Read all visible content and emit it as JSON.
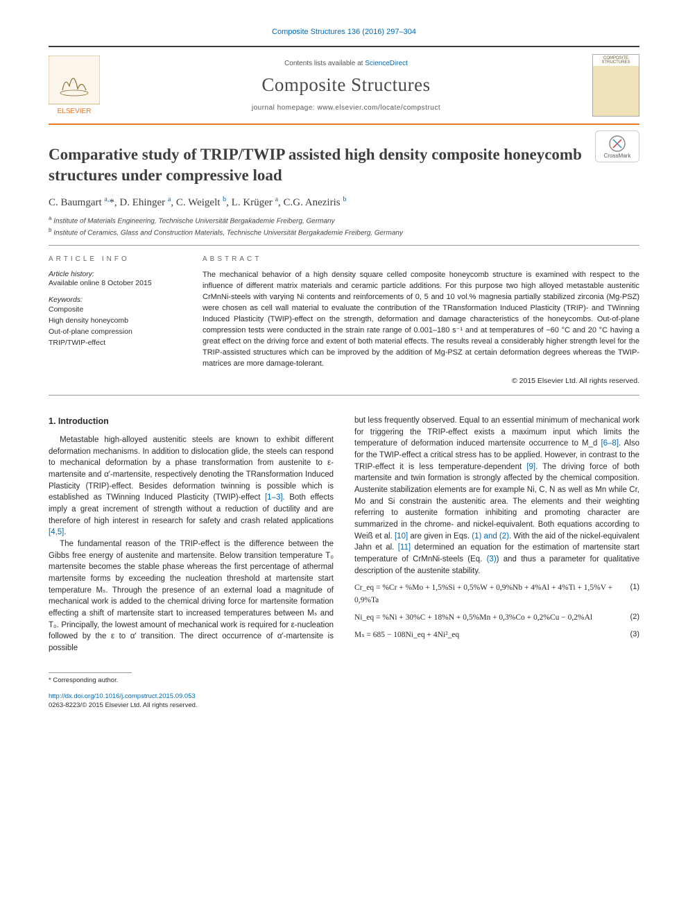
{
  "citation": "Composite Structures 136 (2016) 297–304",
  "masthead": {
    "contents_pre": "Contents lists available at ",
    "contents_link": "ScienceDirect",
    "journal_name": "Composite Structures",
    "homepage_pre": "journal homepage: ",
    "homepage_url": "www.elsevier.com/locate/compstruct",
    "publisher_logo_label": "ELSEVIER",
    "thumb_label": "COMPOSITE STRUCTURES"
  },
  "crossmark_label": "CrossMark",
  "article": {
    "title": "Comparative study of TRIP/TWIP assisted high density composite honeycomb structures under compressive load",
    "authors_html": "C. Baumgart <sup>a,</sup>*, D. Ehinger <sup>a</sup>, C. Weigelt <sup>b</sup>, L. Krüger <sup>a</sup>, C.G. Aneziris <sup>b</sup>",
    "affiliations": [
      {
        "marker": "a",
        "text": "Institute of Materials Engineering, Technische Universität Bergakademie Freiberg, Germany"
      },
      {
        "marker": "b",
        "text": "Institute of Ceramics, Glass and Construction Materials, Technische Universität Bergakademie Freiberg, Germany"
      }
    ]
  },
  "info": {
    "section_label": "article info",
    "history_label": "Article history:",
    "history_value": "Available online 8 October 2015",
    "keywords_label": "Keywords:",
    "keywords": [
      "Composite",
      "High density honeycomb",
      "Out-of-plane compression",
      "TRIP/TWIP-effect"
    ]
  },
  "abstract": {
    "section_label": "abstract",
    "text": "The mechanical behavior of a high density square celled composite honeycomb structure is examined with respect to the influence of different matrix materials and ceramic particle additions. For this purpose two high alloyed metastable austenitic CrMnNi-steels with varying Ni contents and reinforcements of 0, 5 and 10 vol.% magnesia partially stabilized zirconia (Mg-PSZ) were chosen as cell wall material to evaluate the contribution of the TRansformation Induced Plasticity (TRIP)- and TWinning Induced Plasticity (TWIP)-effect on the strength, deformation and damage characteristics of the honeycombs. Out-of-plane compression tests were conducted in the strain rate range of 0.001–180 s⁻¹ and at temperatures of −60 °C and 20 °C having a great effect on the driving force and extent of both material effects. The results reveal a considerably higher strength level for the TRIP-assisted structures which can be improved by the addition of Mg-PSZ at certain deformation degrees whereas the TWIP-matrices are more damage-tolerant.",
    "copyright": "© 2015 Elsevier Ltd. All rights reserved."
  },
  "body": {
    "heading": "1. Introduction",
    "p1": "Metastable high-alloyed austenitic steels are known to exhibit different deformation mechanisms. In addition to dislocation glide, the steels can respond to mechanical deformation by a phase transformation from austenite to ε-martensite and α′-martensite, respectively denoting the TRansformation Induced Plasticity (TRIP)-effect. Besides deformation twinning is possible which is established as TWinning Induced Plasticity (TWIP)-effect ",
    "p1_ref": "[1–3]",
    "p1b": ". Both effects imply a great increment of strength without a reduction of ductility and are therefore of high interest in research for safety and crash related applications ",
    "p1b_ref": "[4,5]",
    "p1c": ".",
    "p2a": "The fundamental reason of the TRIP-effect is the difference between the Gibbs free energy of austenite and martensite. Below transition temperature T₀ martensite becomes the stable phase whereas the first percentage of athermal martensite forms by exceeding the nucleation threshold at martensite start temperature Mₛ. Through the presence of an external load a magnitude of mechanical work is added to the chemical driving force for martensite formation effecting a shift of martensite start to increased temperatures between Mₛ and T₀. Principally, the lowest amount of mechanical work is required for ε-nucleation followed by the ε to α′ transition. The direct occurrence of α′-martensite is possible",
    "p2b": "but less frequently observed. Equal to an essential minimum of mechanical work for triggering the TRIP-effect exists a maximum input which limits the temperature of deformation induced martensite occurrence to M_d ",
    "p2b_ref": "[6–8]",
    "p2c": ". Also for the TWIP-effect a critical stress has to be applied. However, in contrast to the TRIP-effect it is less temperature-dependent ",
    "p2c_ref": "[9]",
    "p2d": ". The driving force of both martensite and twin formation is strongly affected by the chemical composition. Austenite stabilization elements are for example Ni, C, N as well as Mn while Cr, Mo and Si constrain the austenitic area. The elements and their weighting referring to austenite formation inhibiting and promoting character are summarized in the chrome- and nickel-equivalent. Both equations according to Weiß et al. ",
    "p2d_ref": "[10]",
    "p2e": " are given in Eqs. ",
    "p2e_ref": "(1) and (2)",
    "p2f": ". With the aid of the nickel-equivalent Jahn et al. ",
    "p2f_ref": "[11]",
    "p2g": " determined an equation for the estimation of martensite start temperature of CrMnNi-steels (Eq. ",
    "p2g_ref": "(3)",
    "p2h": ") and thus a parameter for qualitative description of the austenite stability."
  },
  "equations": {
    "eq1": "Cr_eq = %Cr + %Mo + 1,5%Si + 0,5%W + 0,9%Nb + 4%Al + 4%Ti + 1,5%V + 0,9%Ta",
    "eq1_num": "(1)",
    "eq2": "Ni_eq = %Ni + 30%C + 18%N + 0,5%Mn + 0,3%Co + 0,2%Cu − 0,2%Al",
    "eq2_num": "(2)",
    "eq3": "Mₛ = 685 − 108Ni_eq + 4Ni²_eq",
    "eq3_num": "(3)"
  },
  "footer": {
    "corresponding": "* Corresponding author.",
    "doi_url": "http://dx.doi.org/10.1016/j.compstruct.2015.09.053",
    "issn_line": "0263-8223/© 2015 Elsevier Ltd. All rights reserved."
  },
  "colors": {
    "link": "#0068b4",
    "rule_orange": "#e87722",
    "text": "#2a2a2a"
  }
}
